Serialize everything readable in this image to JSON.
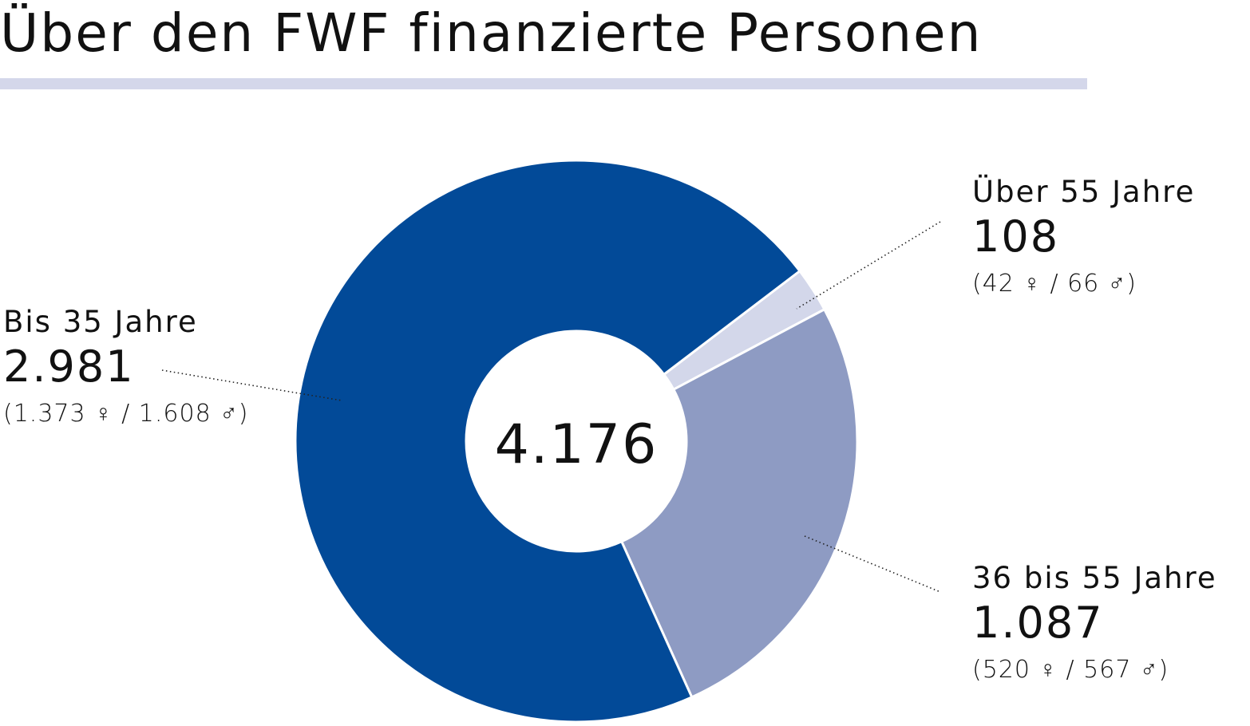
{
  "title": "Über den FWF finanzierte Personen",
  "colors": {
    "bis35": "#024a98",
    "bis55": "#8e9bc3",
    "ueber55": "#d3d7ea",
    "rule": "#d4d7ea",
    "text": "#111111"
  },
  "chart_data": {
    "type": "pie",
    "donut": true,
    "title": "Über den FWF finanzierte Personen",
    "total_label": "4.176",
    "total": 4176,
    "slices": [
      {
        "key": "bis35",
        "name": "Bis 35 Jahre",
        "value": 2981,
        "value_label": "2.981",
        "split_label": "(1.373 ♀ / 1.608 ♂)",
        "female": 1373,
        "male": 1608,
        "color": "#024a98"
      },
      {
        "key": "ueber55",
        "name": "Über 55 Jahre",
        "value": 108,
        "value_label": "108",
        "split_label": "(42 ♀ / 66 ♂)",
        "female": 42,
        "male": 66,
        "color": "#d3d7ea"
      },
      {
        "key": "bis55",
        "name": "36 bis 55 Jahre",
        "value": 1087,
        "value_label": "1.087",
        "split_label": "(520 ♀ / 567 ♂)",
        "female": 520,
        "male": 567,
        "color": "#8e9bc3"
      }
    ]
  }
}
